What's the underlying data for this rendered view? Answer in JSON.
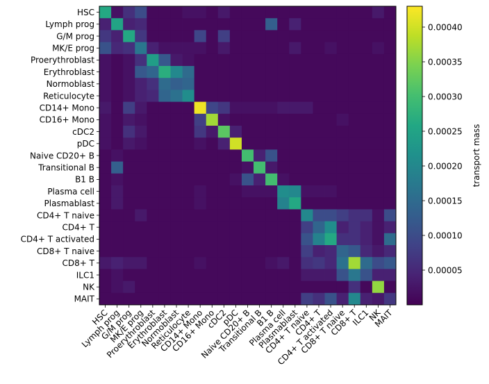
{
  "chart_data": {
    "type": "heatmap",
    "colormap": "viridis",
    "colorbar": {
      "label": "transport mass",
      "vmin": 0,
      "vmax": 0.00043,
      "ticks": [
        5e-05,
        0.0001,
        0.00015,
        0.0002,
        0.00025,
        0.0003,
        0.00035,
        0.0004
      ],
      "tick_labels": [
        "0.00005",
        "0.00010",
        "0.00015",
        "0.00020",
        "0.00025",
        "0.00030",
        "0.00035",
        "0.00040"
      ]
    },
    "rows": [
      "HSC",
      "Lymph prog",
      "G/M prog",
      "MK/E prog",
      "Proerythroblast",
      "Erythroblast",
      "Normoblast",
      "Reticulocyte",
      "CD14+ Mono",
      "CD16+ Mono",
      "cDC2",
      "pDC",
      "Naive CD20+ B",
      "Transitional B",
      "B1 B",
      "Plasma cell",
      "Plasmablast",
      "CD4+ T naive",
      "CD4+ T",
      "CD4+ T activated",
      "CD8+ T naive",
      "CD8+ T",
      "ILC1",
      "NK",
      "MAIT"
    ],
    "columns": [
      "HSC",
      "Lymph prog",
      "G/M prog",
      "MK/E prog",
      "Proerythroblast",
      "Erythroblast",
      "Normoblast",
      "Reticulocyte",
      "CD14+ Mono",
      "CD16+ Mono",
      "cDC2",
      "pDC",
      "Naive CD20+ B",
      "Transitional B",
      "B1 B",
      "Plasma cell",
      "Plasmablast",
      "CD4+ T naive",
      "CD4+ T",
      "CD4+ T activated",
      "CD8+ T naive",
      "CD8+ T",
      "ILC1",
      "NK",
      "MAIT"
    ],
    "values": [
      [
        0.00026,
        2e-05,
        6e-05,
        0.0001,
        1e-05,
        1e-05,
        1e-05,
        2e-05,
        2e-05,
        1e-05,
        3e-05,
        1e-05,
        1e-05,
        1e-05,
        1e-05,
        1e-05,
        1e-05,
        1e-05,
        1e-05,
        1e-05,
        1e-05,
        1e-05,
        1e-05,
        3e-05,
        1e-05
      ],
      [
        4e-05,
        0.00025,
        4e-05,
        5e-05,
        1e-05,
        1e-05,
        1e-05,
        1e-05,
        1e-05,
        1e-05,
        1e-05,
        1e-05,
        1e-05,
        1e-05,
        0.00013,
        1e-05,
        4e-05,
        1e-05,
        1e-05,
        1e-05,
        1e-05,
        1e-05,
        1e-05,
        1e-05,
        1e-05
      ],
      [
        7e-05,
        4e-05,
        0.00026,
        7e-05,
        1e-05,
        1e-05,
        1e-05,
        1e-05,
        9e-05,
        1e-05,
        8e-05,
        1e-05,
        1e-05,
        1e-05,
        1e-05,
        1e-05,
        1e-05,
        1e-05,
        1e-05,
        1e-05,
        1e-05,
        1e-05,
        1e-05,
        1e-05,
        1e-05
      ],
      [
        0.00011,
        5e-05,
        6e-05,
        0.00017,
        4e-05,
        2e-05,
        2e-05,
        2e-05,
        2e-05,
        1e-05,
        3e-05,
        1e-05,
        1e-05,
        1e-05,
        1e-05,
        1e-05,
        3e-05,
        1e-05,
        1e-05,
        2e-05,
        1e-05,
        1e-05,
        1e-05,
        2e-05,
        1e-05
      ],
      [
        2e-05,
        1e-05,
        2e-05,
        6e-05,
        0.00024,
        0.00012,
        3e-05,
        2e-05,
        1e-05,
        1e-05,
        1e-05,
        1e-05,
        1e-05,
        1e-05,
        1e-05,
        1e-05,
        1e-05,
        1e-05,
        1e-05,
        1e-05,
        1e-05,
        1e-05,
        1e-05,
        1e-05,
        1e-05
      ],
      [
        2e-05,
        1e-05,
        2e-05,
        0.00012,
        0.00014,
        0.00027,
        0.0002,
        0.00015,
        1e-05,
        1e-05,
        1e-05,
        1e-05,
        1e-05,
        1e-05,
        1e-05,
        1e-05,
        1e-05,
        1e-05,
        1e-05,
        1e-05,
        1e-05,
        1e-05,
        1e-05,
        1e-05,
        1e-05
      ],
      [
        2e-05,
        1e-05,
        2e-05,
        4e-05,
        6e-05,
        0.00015,
        0.00013,
        0.00014,
        1e-05,
        1e-05,
        1e-05,
        1e-05,
        1e-05,
        1e-05,
        1e-05,
        1e-05,
        1e-05,
        1e-05,
        1e-05,
        1e-05,
        1e-05,
        1e-05,
        1e-05,
        1e-05,
        1e-05
      ],
      [
        2e-05,
        1e-05,
        2e-05,
        4e-05,
        5e-05,
        0.00014,
        0.00016,
        0.00021,
        1e-05,
        1e-05,
        1e-05,
        1e-05,
        1e-05,
        1e-05,
        1e-05,
        1e-05,
        1e-05,
        1e-05,
        1e-05,
        1e-05,
        1e-05,
        1e-05,
        1e-05,
        1e-05,
        1e-05
      ],
      [
        3e-05,
        1e-05,
        8e-05,
        3e-05,
        1e-05,
        1e-05,
        1e-05,
        1e-05,
        0.00042,
        9e-05,
        7e-05,
        2e-05,
        2e-05,
        2e-05,
        2e-05,
        3e-05,
        3e-05,
        3e-05,
        1e-05,
        1e-05,
        1e-05,
        1e-05,
        1e-05,
        1e-05,
        1e-05
      ],
      [
        2e-05,
        1e-05,
        3e-05,
        2e-05,
        1e-05,
        1e-05,
        1e-05,
        1e-05,
        8e-05,
        0.00037,
        2e-05,
        1e-05,
        1e-05,
        1e-05,
        1e-05,
        1e-05,
        1e-05,
        1e-05,
        1e-05,
        1e-05,
        2e-05,
        1e-05,
        1e-05,
        1e-05,
        1e-05
      ],
      [
        2e-05,
        1e-05,
        6e-05,
        3e-05,
        1e-05,
        1e-05,
        1e-05,
        1e-05,
        7e-05,
        3e-05,
        0.00032,
        4e-05,
        1e-05,
        1e-05,
        1e-05,
        1e-05,
        1e-05,
        1e-05,
        1e-05,
        1e-05,
        1e-05,
        1e-05,
        1e-05,
        1e-05,
        1e-05
      ],
      [
        2e-05,
        1e-05,
        3e-05,
        2e-05,
        1e-05,
        1e-05,
        1e-05,
        1e-05,
        2e-05,
        1e-05,
        4e-05,
        0.0004,
        1e-05,
        1e-05,
        1e-05,
        1e-05,
        1e-05,
        1e-05,
        1e-05,
        1e-05,
        1e-05,
        1e-05,
        1e-05,
        1e-05,
        1e-05
      ],
      [
        1e-05,
        2e-05,
        1e-05,
        1e-05,
        1e-05,
        1e-05,
        1e-05,
        1e-05,
        1e-05,
        1e-05,
        1e-05,
        1e-05,
        0.0003,
        4e-05,
        0.00011,
        1e-05,
        1e-05,
        1e-05,
        1e-05,
        1e-05,
        1e-05,
        1e-05,
        1e-05,
        1e-05,
        1e-05
      ],
      [
        1e-05,
        0.00013,
        1e-05,
        1e-05,
        1e-05,
        1e-05,
        1e-05,
        1e-05,
        1e-05,
        1e-05,
        1e-05,
        1e-05,
        2e-05,
        0.0003,
        3e-05,
        1e-05,
        1e-05,
        1e-05,
        1e-05,
        1e-05,
        1e-05,
        1e-05,
        1e-05,
        1e-05,
        1e-05
      ],
      [
        1e-05,
        2e-05,
        1e-05,
        1e-05,
        1e-05,
        1e-05,
        1e-05,
        1e-05,
        1e-05,
        1e-05,
        1e-05,
        2e-05,
        0.00011,
        4e-05,
        0.0003,
        2e-05,
        1e-05,
        1e-05,
        1e-05,
        1e-05,
        1e-05,
        1e-05,
        1e-05,
        1e-05,
        1e-05
      ],
      [
        1e-05,
        3e-05,
        1e-05,
        1e-05,
        1e-05,
        1e-05,
        1e-05,
        1e-05,
        2e-05,
        1e-05,
        1e-05,
        1e-05,
        2e-05,
        2e-05,
        2e-05,
        0.00021,
        0.0002,
        2e-05,
        2e-05,
        2e-05,
        1e-05,
        1e-05,
        1e-05,
        1e-05,
        1e-05
      ],
      [
        1e-05,
        3e-05,
        1e-05,
        1e-05,
        1e-05,
        1e-05,
        1e-05,
        1e-05,
        2e-05,
        1e-05,
        1e-05,
        1e-05,
        1e-05,
        1e-05,
        1e-05,
        0.00019,
        0.00026,
        1e-05,
        1e-05,
        1e-05,
        1e-05,
        1e-05,
        1e-05,
        1e-05,
        1e-05
      ],
      [
        1e-05,
        1e-05,
        1e-05,
        3e-05,
        1e-05,
        1e-05,
        1e-05,
        1e-05,
        1e-05,
        1e-05,
        1e-05,
        1e-05,
        1e-05,
        1e-05,
        1e-05,
        1e-05,
        1e-05,
        0.0002,
        0.0001,
        0.0001,
        8e-05,
        6e-05,
        6e-05,
        2e-05,
        0.0001
      ],
      [
        1e-05,
        1e-05,
        1e-05,
        1e-05,
        1e-05,
        1e-05,
        1e-05,
        1e-05,
        1e-05,
        1e-05,
        1e-05,
        1e-05,
        1e-05,
        1e-05,
        1e-05,
        1e-05,
        1e-05,
        8e-05,
        0.00014,
        0.00021,
        4e-05,
        6e-05,
        4e-05,
        2e-05,
        4e-05
      ],
      [
        1e-05,
        1e-05,
        1e-05,
        1e-05,
        1e-05,
        1e-05,
        1e-05,
        1e-05,
        1e-05,
        1e-05,
        1e-05,
        1e-05,
        1e-05,
        1e-05,
        1e-05,
        1e-05,
        1e-05,
        0.00011,
        0.00019,
        0.00026,
        6e-05,
        6e-05,
        4e-05,
        2e-05,
        0.00015
      ],
      [
        1e-05,
        1e-05,
        1e-05,
        1e-05,
        1e-05,
        1e-05,
        1e-05,
        1e-05,
        1e-05,
        1e-05,
        1e-05,
        1e-05,
        1e-05,
        1e-05,
        1e-05,
        1e-05,
        1e-05,
        8e-05,
        4e-05,
        5e-05,
        0.00014,
        0.00012,
        5e-05,
        3e-05,
        5e-05
      ],
      [
        3e-05,
        4e-05,
        3e-05,
        3e-05,
        1e-05,
        1e-05,
        1e-05,
        1e-05,
        2e-05,
        1e-05,
        1e-05,
        1e-05,
        1e-05,
        1e-05,
        2e-05,
        3e-05,
        1e-05,
        6e-05,
        7e-05,
        5e-05,
        0.00016,
        0.00037,
        0.00015,
        0.0001,
        0.00012
      ],
      [
        1e-05,
        2e-05,
        1e-05,
        1e-05,
        1e-05,
        1e-05,
        1e-05,
        1e-05,
        1e-05,
        1e-05,
        1e-05,
        1e-05,
        1e-05,
        1e-05,
        1e-05,
        1e-05,
        1e-05,
        3e-05,
        3e-05,
        3e-05,
        0.00011,
        0.00017,
        0.00011,
        4e-05,
        4e-05
      ],
      [
        1e-05,
        2e-05,
        3e-05,
        1e-05,
        1e-05,
        1e-05,
        1e-05,
        1e-05,
        1e-05,
        1e-05,
        1e-05,
        1e-05,
        1e-05,
        1e-05,
        1e-05,
        1e-05,
        1e-05,
        1e-05,
        1e-05,
        1e-05,
        1e-05,
        6e-05,
        1e-05,
        0.00036,
        1e-05
      ],
      [
        1e-05,
        1e-05,
        1e-05,
        1e-05,
        1e-05,
        1e-05,
        1e-05,
        1e-05,
        1e-05,
        1e-05,
        1e-05,
        1e-05,
        1e-05,
        1e-05,
        1e-05,
        1e-05,
        1e-05,
        8e-05,
        6e-05,
        0.00011,
        4e-05,
        0.0002,
        4e-05,
        3e-05,
        7e-05
      ]
    ]
  }
}
